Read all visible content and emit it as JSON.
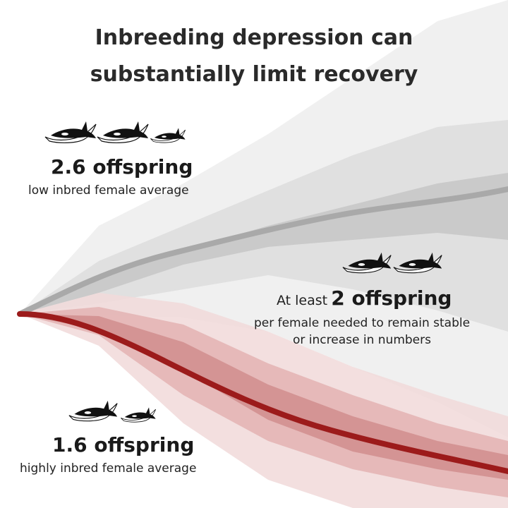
{
  "title_lines": [
    "Inbreeding depression can",
    "substantially limit recovery"
  ],
  "low_inbred": {
    "headline": "2.6 offspring",
    "caption": "low inbred female average",
    "orca_icons": 3
  },
  "threshold": {
    "prefix": "At least",
    "headline": "2 offspring",
    "caption_lines": [
      "per female needed to remain stable",
      "or increase in numbers"
    ],
    "orca_icons": 2
  },
  "high_inbred": {
    "headline": "1.6 offspring",
    "caption": "highly inbred female average",
    "orca_icons": 2
  },
  "colors": {
    "gray_trajectory": "#a9a9a9",
    "red_trajectory": "#9c1b1b",
    "gray_band": "#b9b9b9",
    "red_band": "#c98080",
    "orca": "#111111"
  },
  "icons": [
    "orca-icon"
  ]
}
